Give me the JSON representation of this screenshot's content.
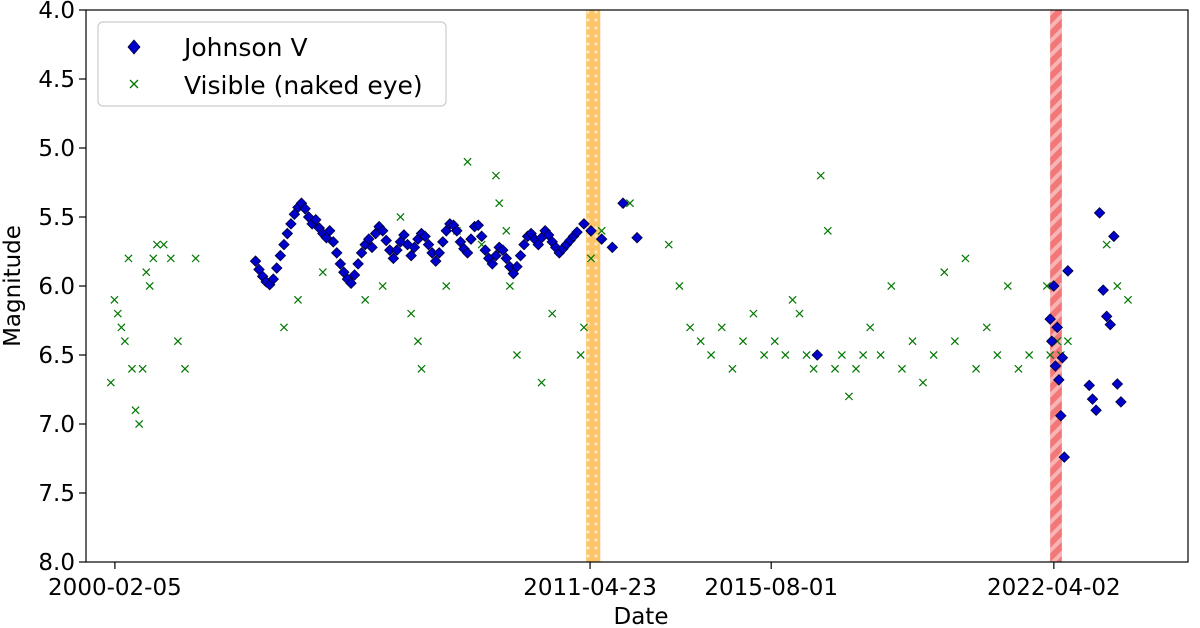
{
  "chart_data": {
    "type": "scatter",
    "title": "",
    "xlabel": "Date",
    "ylabel": "Magnitude",
    "x_type": "date",
    "xlim": [
      "1999-06-01",
      "2025-06-01"
    ],
    "ylim": [
      4.0,
      8.0
    ],
    "y_inverted": true,
    "x_ticks": [
      "2000-02-05",
      "2011-04-23",
      "2015-08-01",
      "2022-04-02"
    ],
    "y_ticks": [
      "4.0",
      "4.5",
      "5.0",
      "5.5",
      "6.0",
      "6.5",
      "7.0",
      "7.5",
      "8.0"
    ],
    "y_tick_values": [
      4.0,
      4.5,
      5.0,
      5.5,
      6.0,
      6.5,
      7.0,
      7.5,
      8.0
    ],
    "grid": false,
    "legend_position": "top-left",
    "bands": [
      {
        "start": "2011-03-20",
        "end": "2011-07-20",
        "color": "#fdbf5a",
        "pattern": "dotted"
      },
      {
        "start": "2022-03-01",
        "end": "2022-06-10",
        "color": "#f0686a",
        "pattern": "hatched"
      }
    ],
    "series": [
      {
        "name": "Johnson V",
        "marker": "diamond",
        "color": "#0000cc",
        "edge_color": "#000033",
        "points": [
          [
            "2003-06-01",
            5.82
          ],
          [
            "2003-07-01",
            5.88
          ],
          [
            "2003-08-01",
            5.93
          ],
          [
            "2003-09-01",
            5.97
          ],
          [
            "2003-10-01",
            5.99
          ],
          [
            "2003-11-01",
            5.95
          ],
          [
            "2003-12-01",
            5.87
          ],
          [
            "2004-01-01",
            5.78
          ],
          [
            "2004-02-01",
            5.7
          ],
          [
            "2004-03-01",
            5.62
          ],
          [
            "2004-04-01",
            5.55
          ],
          [
            "2004-05-01",
            5.48
          ],
          [
            "2004-06-01",
            5.43
          ],
          [
            "2004-07-01",
            5.4
          ],
          [
            "2004-08-01",
            5.44
          ],
          [
            "2004-09-01",
            5.5
          ],
          [
            "2004-10-01",
            5.55
          ],
          [
            "2004-11-01",
            5.52
          ],
          [
            "2004-12-01",
            5.58
          ],
          [
            "2005-01-01",
            5.62
          ],
          [
            "2005-02-01",
            5.65
          ],
          [
            "2005-03-01",
            5.6
          ],
          [
            "2005-04-01",
            5.68
          ],
          [
            "2005-05-01",
            5.76
          ],
          [
            "2005-06-01",
            5.84
          ],
          [
            "2005-07-01",
            5.9
          ],
          [
            "2005-08-01",
            5.95
          ],
          [
            "2005-09-01",
            5.98
          ],
          [
            "2005-10-01",
            5.92
          ],
          [
            "2005-11-01",
            5.84
          ],
          [
            "2005-12-01",
            5.76
          ],
          [
            "2006-01-01",
            5.7
          ],
          [
            "2006-02-01",
            5.66
          ],
          [
            "2006-03-01",
            5.72
          ],
          [
            "2006-04-01",
            5.62
          ],
          [
            "2006-05-01",
            5.57
          ],
          [
            "2006-06-01",
            5.6
          ],
          [
            "2006-07-01",
            5.67
          ],
          [
            "2006-08-01",
            5.74
          ],
          [
            "2006-09-01",
            5.8
          ],
          [
            "2006-10-01",
            5.74
          ],
          [
            "2006-11-01",
            5.68
          ],
          [
            "2006-12-01",
            5.63
          ],
          [
            "2007-01-01",
            5.7
          ],
          [
            "2007-02-01",
            5.78
          ],
          [
            "2007-03-01",
            5.72
          ],
          [
            "2007-04-01",
            5.66
          ],
          [
            "2007-05-01",
            5.62
          ],
          [
            "2007-06-01",
            5.64
          ],
          [
            "2007-07-01",
            5.7
          ],
          [
            "2007-08-01",
            5.76
          ],
          [
            "2007-09-01",
            5.82
          ],
          [
            "2007-10-01",
            5.76
          ],
          [
            "2007-11-01",
            5.68
          ],
          [
            "2007-12-01",
            5.6
          ],
          [
            "2008-01-01",
            5.55
          ],
          [
            "2008-02-01",
            5.56
          ],
          [
            "2008-03-01",
            5.6
          ],
          [
            "2008-04-01",
            5.68
          ],
          [
            "2008-05-01",
            5.73
          ],
          [
            "2008-06-01",
            5.76
          ],
          [
            "2008-07-01",
            5.66
          ],
          [
            "2008-08-01",
            5.57
          ],
          [
            "2008-09-01",
            5.56
          ],
          [
            "2008-10-01",
            5.64
          ],
          [
            "2008-11-01",
            5.74
          ],
          [
            "2008-12-01",
            5.8
          ],
          [
            "2009-01-01",
            5.84
          ],
          [
            "2009-02-01",
            5.78
          ],
          [
            "2009-03-01",
            5.72
          ],
          [
            "2009-04-01",
            5.74
          ],
          [
            "2009-05-01",
            5.8
          ],
          [
            "2009-06-01",
            5.86
          ],
          [
            "2009-07-01",
            5.91
          ],
          [
            "2009-08-01",
            5.86
          ],
          [
            "2009-09-01",
            5.78
          ],
          [
            "2009-10-01",
            5.7
          ],
          [
            "2009-11-01",
            5.64
          ],
          [
            "2009-12-01",
            5.62
          ],
          [
            "2010-01-01",
            5.66
          ],
          [
            "2010-02-01",
            5.7
          ],
          [
            "2010-03-01",
            5.65
          ],
          [
            "2010-04-01",
            5.6
          ],
          [
            "2010-05-01",
            5.63
          ],
          [
            "2010-06-01",
            5.68
          ],
          [
            "2010-07-01",
            5.72
          ],
          [
            "2010-08-01",
            5.76
          ],
          [
            "2010-09-01",
            5.73
          ],
          [
            "2010-10-01",
            5.7
          ],
          [
            "2010-11-01",
            5.67
          ],
          [
            "2010-12-01",
            5.64
          ],
          [
            "2011-01-01",
            5.61
          ],
          [
            "2011-03-01",
            5.55
          ],
          [
            "2011-05-01",
            5.6
          ],
          [
            "2011-08-01",
            5.66
          ],
          [
            "2011-11-01",
            5.72
          ],
          [
            "2012-02-01",
            5.4
          ],
          [
            "2012-06-01",
            5.65
          ],
          [
            "2016-09-01",
            6.5
          ],
          [
            "2022-03-01",
            6.24
          ],
          [
            "2022-03-15",
            6.4
          ],
          [
            "2022-04-01",
            6.0
          ],
          [
            "2022-04-15",
            6.58
          ],
          [
            "2022-05-01",
            6.3
          ],
          [
            "2022-05-15",
            6.68
          ],
          [
            "2022-06-01",
            6.94
          ],
          [
            "2022-06-15",
            6.52
          ],
          [
            "2022-07-01",
            7.24
          ],
          [
            "2022-08-01",
            5.89
          ],
          [
            "2023-02-01",
            6.72
          ],
          [
            "2023-03-01",
            6.82
          ],
          [
            "2023-04-01",
            6.9
          ],
          [
            "2023-05-01",
            5.47
          ],
          [
            "2023-06-01",
            6.03
          ],
          [
            "2023-07-01",
            6.22
          ],
          [
            "2023-08-01",
            6.28
          ],
          [
            "2023-09-01",
            5.64
          ],
          [
            "2023-10-01",
            6.71
          ],
          [
            "2023-11-01",
            6.84
          ]
        ]
      },
      {
        "name": "Visible (naked eye)",
        "marker": "x",
        "color": "#007700",
        "points": [
          [
            "2000-01-01",
            6.7
          ],
          [
            "2000-02-01",
            6.1
          ],
          [
            "2000-03-01",
            6.2
          ],
          [
            "2000-04-01",
            6.3
          ],
          [
            "2000-05-01",
            6.4
          ],
          [
            "2000-06-01",
            5.8
          ],
          [
            "2000-07-01",
            6.6
          ],
          [
            "2000-08-01",
            6.9
          ],
          [
            "2000-09-01",
            7.0
          ],
          [
            "2000-10-01",
            6.6
          ],
          [
            "2000-11-01",
            5.9
          ],
          [
            "2000-12-01",
            6.0
          ],
          [
            "2001-01-01",
            5.8
          ],
          [
            "2001-02-01",
            5.7
          ],
          [
            "2001-04-01",
            5.7
          ],
          [
            "2001-06-01",
            5.8
          ],
          [
            "2001-08-01",
            6.4
          ],
          [
            "2001-10-01",
            6.6
          ],
          [
            "2002-01-01",
            5.8
          ],
          [
            "2004-02-01",
            6.3
          ],
          [
            "2004-06-01",
            6.1
          ],
          [
            "2005-01-01",
            5.9
          ],
          [
            "2006-01-01",
            6.1
          ],
          [
            "2006-06-01",
            6.0
          ],
          [
            "2006-11-01",
            5.5
          ],
          [
            "2007-02-01",
            6.2
          ],
          [
            "2007-04-01",
            6.4
          ],
          [
            "2007-05-01",
            6.6
          ],
          [
            "2007-12-01",
            6.0
          ],
          [
            "2008-03-01",
            5.6
          ],
          [
            "2008-06-01",
            5.1
          ],
          [
            "2008-10-01",
            5.7
          ],
          [
            "2009-02-01",
            5.2
          ],
          [
            "2009-03-01",
            5.4
          ],
          [
            "2009-05-01",
            5.6
          ],
          [
            "2009-06-01",
            6.0
          ],
          [
            "2009-08-01",
            6.5
          ],
          [
            "2010-03-01",
            6.7
          ],
          [
            "2010-06-01",
            6.2
          ],
          [
            "2011-02-01",
            6.5
          ],
          [
            "2011-03-01",
            6.3
          ],
          [
            "2011-05-01",
            5.8
          ],
          [
            "2011-08-01",
            5.6
          ],
          [
            "2012-04-01",
            5.4
          ],
          [
            "2013-03-01",
            5.7
          ],
          [
            "2013-06-01",
            6.0
          ],
          [
            "2013-09-01",
            6.3
          ],
          [
            "2013-12-01",
            6.4
          ],
          [
            "2014-03-01",
            6.5
          ],
          [
            "2014-06-01",
            6.3
          ],
          [
            "2014-09-01",
            6.6
          ],
          [
            "2014-12-01",
            6.4
          ],
          [
            "2015-03-01",
            6.2
          ],
          [
            "2015-06-01",
            6.5
          ],
          [
            "2015-09-01",
            6.4
          ],
          [
            "2015-12-01",
            6.5
          ],
          [
            "2016-02-01",
            6.1
          ],
          [
            "2016-04-01",
            6.2
          ],
          [
            "2016-06-01",
            6.5
          ],
          [
            "2016-08-01",
            6.6
          ],
          [
            "2016-10-01",
            5.2
          ],
          [
            "2016-12-01",
            5.6
          ],
          [
            "2017-02-01",
            6.6
          ],
          [
            "2017-04-01",
            6.5
          ],
          [
            "2017-06-01",
            6.8
          ],
          [
            "2017-08-01",
            6.6
          ],
          [
            "2017-10-01",
            6.5
          ],
          [
            "2017-12-01",
            6.3
          ],
          [
            "2018-03-01",
            6.5
          ],
          [
            "2018-06-01",
            6.0
          ],
          [
            "2018-09-01",
            6.6
          ],
          [
            "2018-12-01",
            6.4
          ],
          [
            "2019-03-01",
            6.7
          ],
          [
            "2019-06-01",
            6.5
          ],
          [
            "2019-09-01",
            5.9
          ],
          [
            "2019-12-01",
            6.4
          ],
          [
            "2020-03-01",
            5.8
          ],
          [
            "2020-06-01",
            6.6
          ],
          [
            "2020-09-01",
            6.3
          ],
          [
            "2020-12-01",
            6.5
          ],
          [
            "2021-03-01",
            6.0
          ],
          [
            "2021-06-01",
            6.6
          ],
          [
            "2021-09-01",
            6.5
          ],
          [
            "2022-02-01",
            6.0
          ],
          [
            "2022-03-01",
            6.5
          ],
          [
            "2022-05-01",
            6.4
          ],
          [
            "2022-06-01",
            6.5
          ],
          [
            "2022-08-01",
            6.4
          ],
          [
            "2023-07-01",
            5.7
          ],
          [
            "2023-10-01",
            6.0
          ],
          [
            "2024-01-01",
            6.1
          ]
        ]
      }
    ]
  }
}
